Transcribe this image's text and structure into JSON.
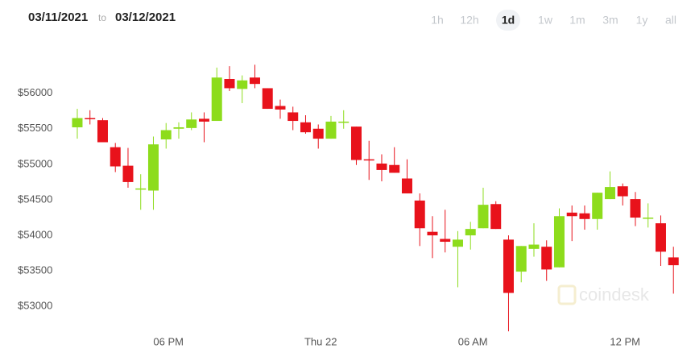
{
  "header": {
    "from": "03/11/2021",
    "separator": "to",
    "to": "03/12/2021"
  },
  "ranges": [
    "1h",
    "12h",
    "1d",
    "1w",
    "1m",
    "3m",
    "1y",
    "all"
  ],
  "selected_range": "1d",
  "watermark": "coindesk",
  "chart_data": {
    "type": "candlestick",
    "categories": [
      null,
      null,
      null,
      null,
      null,
      null,
      null,
      "06 PM",
      null,
      null,
      null,
      null,
      null,
      null,
      null,
      null,
      null,
      null,
      null,
      "Thu 22",
      null,
      null,
      null,
      null,
      null,
      null,
      null,
      null,
      null,
      null,
      null,
      "06 AM",
      null,
      null,
      null,
      null,
      null,
      null,
      null,
      null,
      null,
      null,
      null,
      "12 PM",
      null,
      null,
      null,
      null
    ],
    "open": [
      55520,
      55650,
      55620,
      55240,
      54980,
      54650,
      54630,
      55350,
      55500,
      55510,
      55640,
      55610,
      56200,
      56060,
      56220,
      56070,
      55820,
      55730,
      55590,
      55500,
      55360,
      55590,
      55530,
      55070,
      55010,
      54990,
      54800,
      54490,
      54050,
      53950,
      53840,
      54000,
      54100,
      54440,
      53940,
      53490,
      53810,
      53840,
      53550,
      54320,
      54310,
      54230,
      54510,
      54690,
      54510,
      54240,
      54170,
      53690
    ],
    "high": [
      55780,
      55760,
      55650,
      55300,
      55230,
      54860,
      55390,
      55580,
      55590,
      55730,
      55730,
      56360,
      56380,
      56250,
      56400,
      56070,
      55910,
      55810,
      55690,
      55560,
      55680,
      55760,
      55530,
      55330,
      55140,
      55240,
      55070,
      54590,
      54270,
      54360,
      54060,
      54190,
      54670,
      54480,
      54000,
      53850,
      54170,
      53930,
      54380,
      54420,
      54420,
      54600,
      54900,
      54730,
      54610,
      54450,
      54280,
      53840
    ],
    "low": [
      55360,
      55560,
      55310,
      54890,
      54670,
      54360,
      54360,
      55220,
      55360,
      55480,
      55310,
      55610,
      56030,
      55860,
      56070,
      55780,
      55640,
      55480,
      55430,
      55220,
      55360,
      55500,
      54990,
      54780,
      54760,
      54880,
      54590,
      53850,
      53680,
      53760,
      53270,
      53800,
      54100,
      54090,
      52650,
      53340,
      53700,
      53360,
      53550,
      53920,
      54080,
      54080,
      54510,
      54420,
      54130,
      54110,
      53570,
      53180
    ],
    "close": [
      55650,
      55640,
      55310,
      54970,
      54750,
      54660,
      55280,
      55480,
      55520,
      55630,
      55600,
      56220,
      56070,
      56180,
      56130,
      55780,
      55770,
      55610,
      55450,
      55360,
      55600,
      55600,
      55060,
      55060,
      54920,
      54880,
      54590,
      54100,
      54000,
      53910,
      53940,
      54090,
      54430,
      54090,
      53190,
      53850,
      53870,
      53520,
      54270,
      54270,
      54230,
      54600,
      54680,
      54550,
      54250,
      54250,
      53770,
      53580
    ],
    "up_color": "#8ddc1c",
    "down_color": "#e8121b",
    "ylim": [
      52550,
      56540
    ],
    "yticks": [
      {
        "value": 53000,
        "label": "$53000"
      },
      {
        "value": 53500,
        "label": "$53500"
      },
      {
        "value": 54000,
        "label": "$54000"
      },
      {
        "value": 54500,
        "label": "$54500"
      },
      {
        "value": 55000,
        "label": "$55000"
      },
      {
        "value": 55500,
        "label": "$55500"
      },
      {
        "value": 56000,
        "label": "$56000"
      }
    ],
    "grid": false
  }
}
